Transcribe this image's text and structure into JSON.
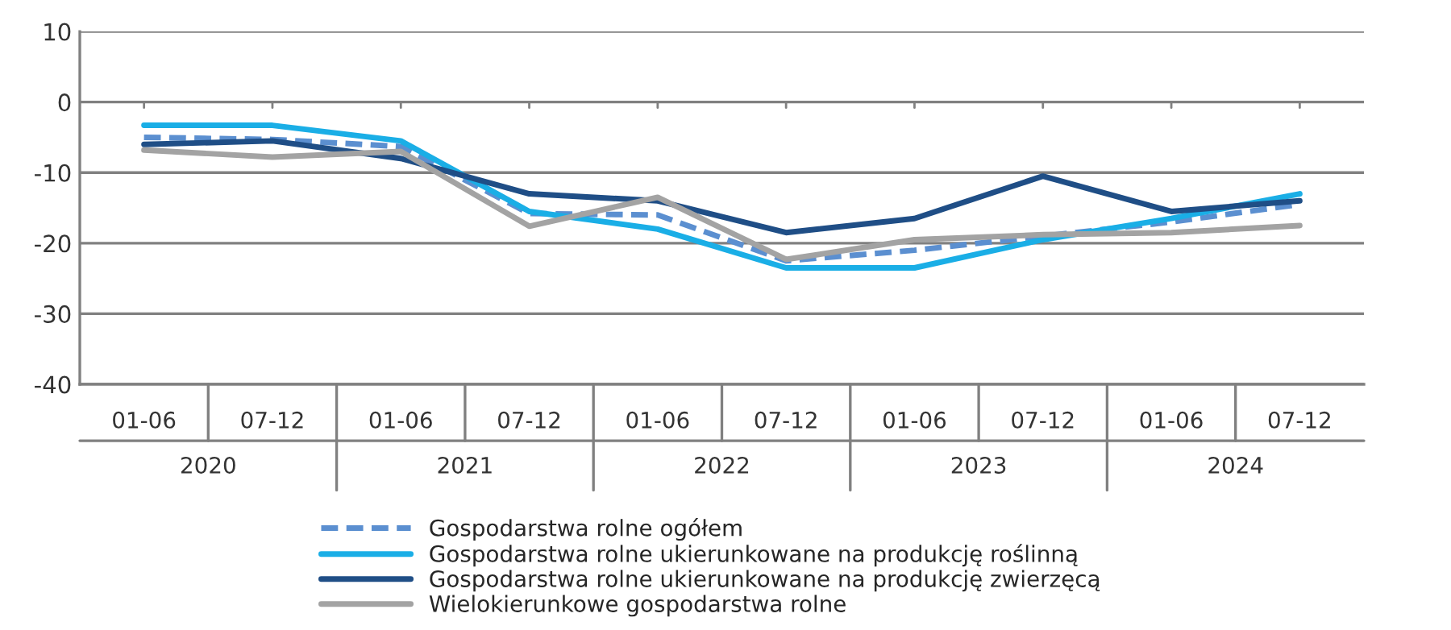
{
  "chart_data": {
    "type": "line",
    "categories": [
      "01-06",
      "07-12",
      "01-06",
      "07-12",
      "01-06",
      "07-12",
      "01-06",
      "07-12",
      "01-06",
      "07-12"
    ],
    "annotations": [
      "2020",
      "2021",
      "2022",
      "2023",
      "2024"
    ],
    "series": [
      {
        "name": "Gospodarstwa rolne ogółem",
        "color": "#5b8fd0",
        "line_style": "dashed",
        "values": [
          -5,
          -5.3,
          -6.3,
          -15.8,
          -16,
          -22.5,
          -21,
          -19,
          -17,
          -14.5
        ]
      },
      {
        "name": "Gospodarstwa rolne ukierunkowane na produkcję roślinną",
        "color": "#1aaee6",
        "line_style": "solid",
        "values": [
          -3.3,
          -3.3,
          -5.5,
          -15.5,
          -18,
          -23.5,
          -23.5,
          -19.5,
          -16.5,
          -13
        ]
      },
      {
        "name": "Gospodarstwa rolne ukierunkowane na produkcję zwierzęcą",
        "color": "#1f4e86",
        "line_style": "solid",
        "values": [
          -6,
          -5.5,
          -8,
          -13,
          -14,
          -18.5,
          -16.5,
          -10.5,
          -15.5,
          -14
        ]
      },
      {
        "name": "Wielokierunkowe gospodarstwa rolne",
        "color": "#a3a3a3",
        "line_style": "solid",
        "values": [
          -6.8,
          -7.8,
          -7,
          -17.6,
          -13.5,
          -22.3,
          -19.5,
          -18.8,
          -18.5,
          -17.5
        ]
      }
    ],
    "ylim": [
      -40,
      10
    ],
    "yticks": [
      -40,
      -30,
      -20,
      -10,
      0,
      10
    ],
    "grid": "y",
    "legend": "bottom",
    "marker": "none"
  }
}
